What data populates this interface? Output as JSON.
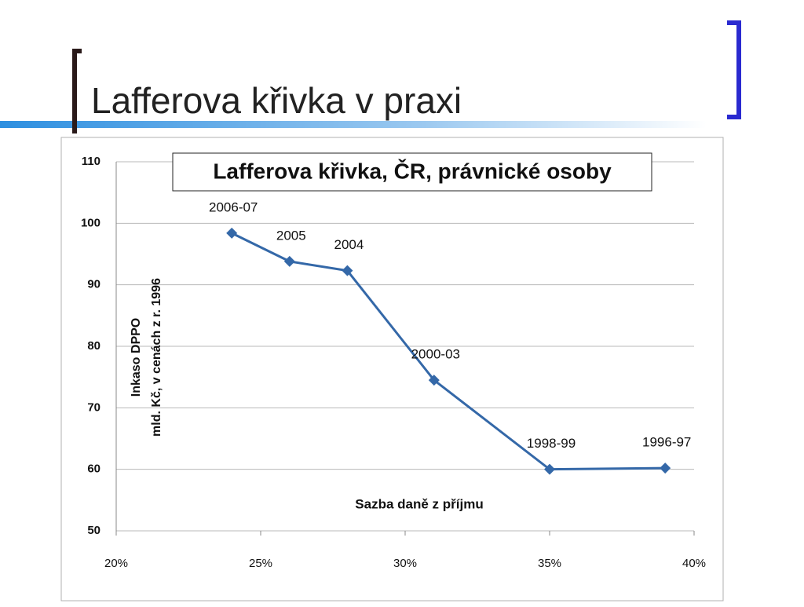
{
  "slide_title": "Lafferova křivka v praxi",
  "chart_data": {
    "type": "line",
    "title": "Lafferova křivka, ČR, právnické osoby",
    "x_label": "Sazba daně z příjmu",
    "y_label": [
      "Inkaso DPPO",
      "mld. Kč, v cenách z r. 1996"
    ],
    "x": [
      24,
      26,
      28,
      31,
      35,
      39
    ],
    "values": [
      98.4,
      93.8,
      92.3,
      74.5,
      60.0,
      60.2
    ],
    "point_labels": [
      "2006-07",
      "2005",
      "2004",
      "2000-03",
      "1998-99",
      "1996-97"
    ],
    "color": "#3468a8",
    "xlim": [
      20,
      40
    ],
    "xticks": [
      {
        "value": 20,
        "label": "20%"
      },
      {
        "value": 25,
        "label": "25%"
      },
      {
        "value": 30,
        "label": "30%"
      },
      {
        "value": 35,
        "label": "35%"
      },
      {
        "value": 40,
        "label": "40%"
      }
    ],
    "ylim": [
      50,
      110
    ],
    "yticks": [
      50,
      60,
      70,
      80,
      90,
      100,
      110
    ],
    "grid": true
  }
}
